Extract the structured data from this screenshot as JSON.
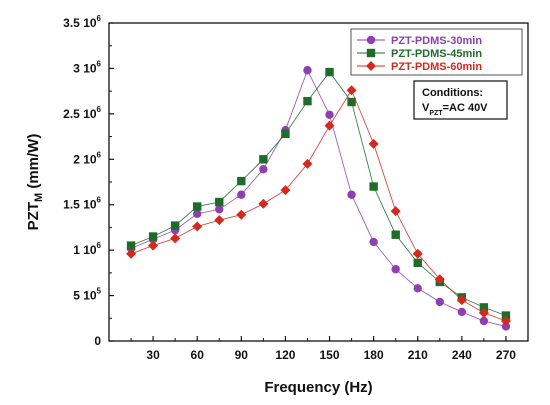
{
  "chart_data": {
    "type": "line",
    "title": "",
    "xlabel": "Frequency (Hz)",
    "ylabel": "PZT_M (mm/W)",
    "ylabel_main": "PZT",
    "ylabel_sub": "M",
    "ylabel_unit": "(mm/W)",
    "xlim": [
      0,
      285
    ],
    "ylim": [
      0,
      3500000
    ],
    "xticks": [
      30,
      60,
      90,
      120,
      150,
      180,
      210,
      240,
      270
    ],
    "yticks": [
      {
        "value": 0,
        "mantissa": "0",
        "exp": ""
      },
      {
        "value": 500000,
        "mantissa": "5 10",
        "exp": "5"
      },
      {
        "value": 1000000,
        "mantissa": "1 10",
        "exp": "6"
      },
      {
        "value": 1500000,
        "mantissa": "1.5 10",
        "exp": "6"
      },
      {
        "value": 2000000,
        "mantissa": "2 10",
        "exp": "6"
      },
      {
        "value": 2500000,
        "mantissa": "2.5 10",
        "exp": "6"
      },
      {
        "value": 3000000,
        "mantissa": "3 10",
        "exp": "6"
      },
      {
        "value": 3500000,
        "mantissa": "3.5 10",
        "exp": "6"
      }
    ],
    "grid": false,
    "legend_position": "top-right",
    "series": [
      {
        "name": "PZT-PDMS-30min",
        "color": "#8e3fb0",
        "marker": "circle",
        "x": [
          15,
          30,
          45,
          60,
          75,
          90,
          105,
          120,
          135,
          150,
          165,
          180,
          195,
          210,
          225,
          240,
          255,
          270
        ],
        "y": [
          1020000,
          1120000,
          1220000,
          1400000,
          1450000,
          1610000,
          1890000,
          2320000,
          2980000,
          2490000,
          1610000,
          1090000,
          790000,
          580000,
          430000,
          320000,
          220000,
          160000
        ]
      },
      {
        "name": "PZT-PDMS-45min",
        "color": "#1f6b2a",
        "marker": "square",
        "x": [
          15,
          30,
          45,
          60,
          75,
          90,
          105,
          120,
          135,
          150,
          165,
          180,
          195,
          210,
          225,
          240,
          255,
          270
        ],
        "y": [
          1050000,
          1150000,
          1270000,
          1480000,
          1530000,
          1760000,
          2000000,
          2280000,
          2640000,
          2960000,
          2630000,
          1700000,
          1170000,
          860000,
          650000,
          480000,
          370000,
          280000
        ]
      },
      {
        "name": "PZT-PDMS-60min",
        "color": "#d42a1e",
        "marker": "diamond",
        "x": [
          15,
          30,
          45,
          60,
          75,
          90,
          105,
          120,
          135,
          150,
          165,
          180,
          195,
          210,
          225,
          240,
          255,
          270
        ],
        "y": [
          960000,
          1050000,
          1130000,
          1260000,
          1330000,
          1390000,
          1510000,
          1660000,
          1950000,
          2370000,
          2760000,
          2170000,
          1430000,
          960000,
          680000,
          450000,
          310000,
          220000
        ]
      }
    ],
    "annotation": {
      "title": "Conditions:",
      "line_main": "V",
      "line_sub": "PZT",
      "line_rest": "=AC 40V"
    }
  }
}
